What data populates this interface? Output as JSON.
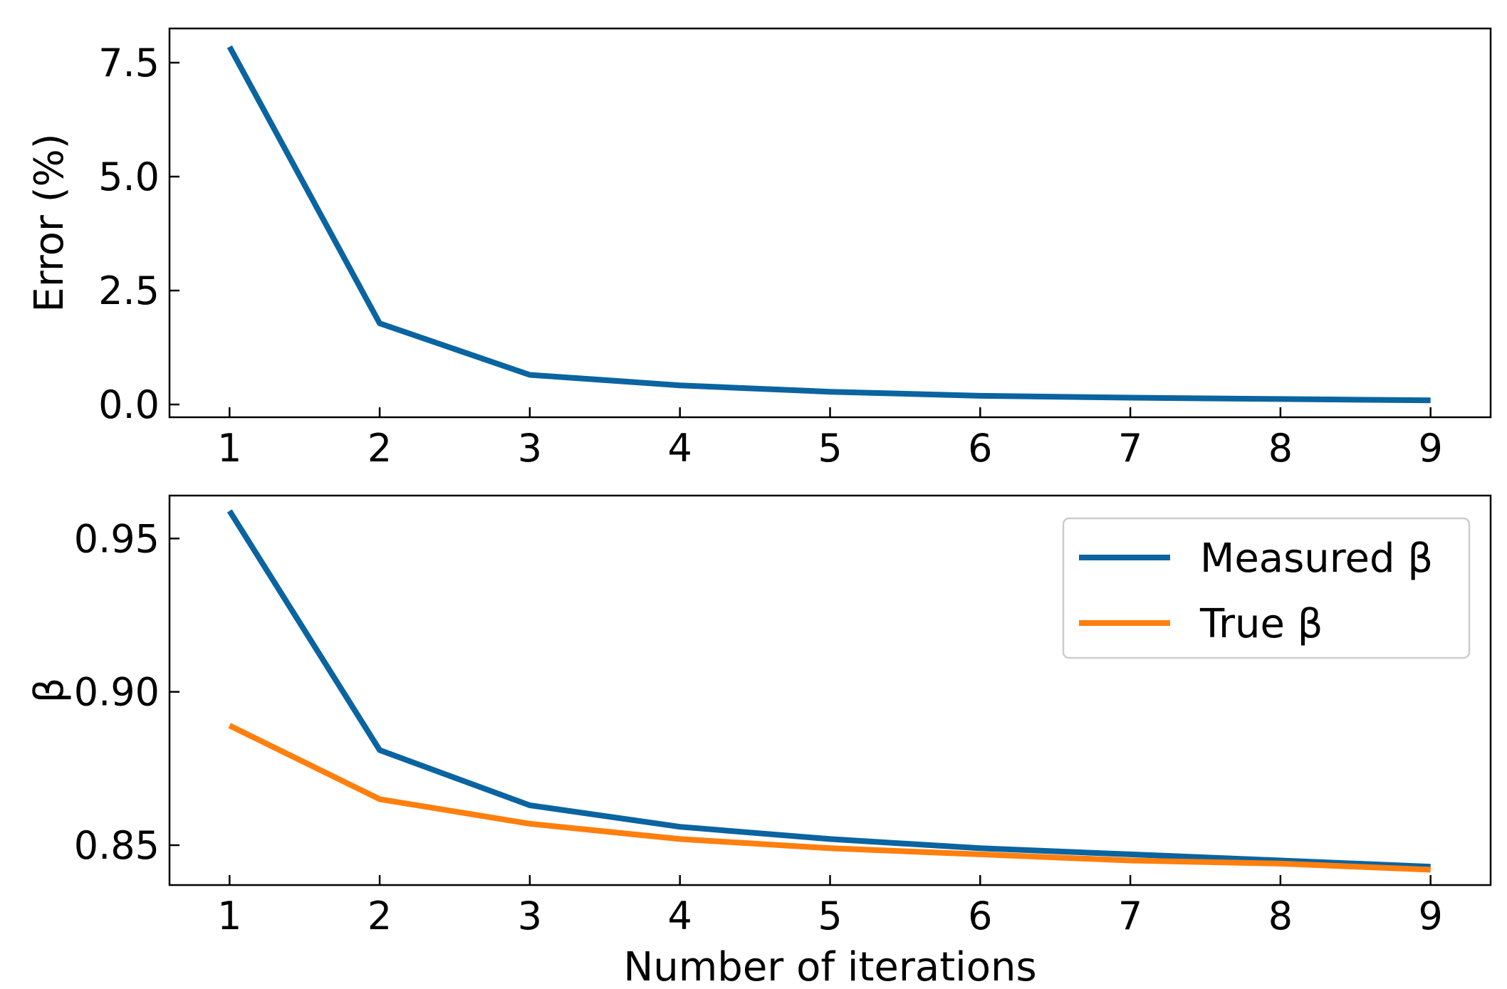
{
  "chart_data": [
    {
      "type": "line",
      "title": "",
      "xlabel": "",
      "ylabel": "Error (%)",
      "xlim": [
        0.6,
        9.4
      ],
      "ylim": [
        -0.28,
        8.25
      ],
      "x": [
        1,
        2,
        3,
        4,
        5,
        6,
        7,
        8,
        9
      ],
      "xticks": [
        "1",
        "2",
        "3",
        "4",
        "5",
        "6",
        "7",
        "8",
        "9"
      ],
      "yticks": [
        0.0,
        2.5,
        5.0,
        7.5
      ],
      "ytick_labels": [
        "0.0",
        "2.5",
        "5.0",
        "7.5"
      ],
      "grid": false,
      "series": [
        {
          "name": "",
          "color": "#0a64a0",
          "values": [
            7.85,
            1.78,
            0.65,
            0.42,
            0.28,
            0.19,
            0.15,
            0.12,
            0.09
          ]
        }
      ]
    },
    {
      "type": "line",
      "title": "",
      "xlabel": "Number of iterations",
      "ylabel": "β",
      "xlim": [
        0.6,
        9.4
      ],
      "ylim": [
        0.837,
        0.964
      ],
      "x": [
        1,
        2,
        3,
        4,
        5,
        6,
        7,
        8,
        9
      ],
      "xticks": [
        "1",
        "2",
        "3",
        "4",
        "5",
        "6",
        "7",
        "8",
        "9"
      ],
      "yticks": [
        0.85,
        0.9,
        0.95
      ],
      "ytick_labels": [
        "0.85",
        "0.90",
        "0.95"
      ],
      "grid": false,
      "legend": "top-right",
      "series": [
        {
          "name": "Measured β",
          "color": "#0a64a0",
          "values": [
            0.959,
            0.881,
            0.863,
            0.856,
            0.852,
            0.849,
            0.847,
            0.845,
            0.843
          ]
        },
        {
          "name": "True β",
          "color": "#ff7f0e",
          "values": [
            0.889,
            0.865,
            0.857,
            0.852,
            0.849,
            0.847,
            0.845,
            0.844,
            0.842
          ]
        }
      ]
    }
  ]
}
